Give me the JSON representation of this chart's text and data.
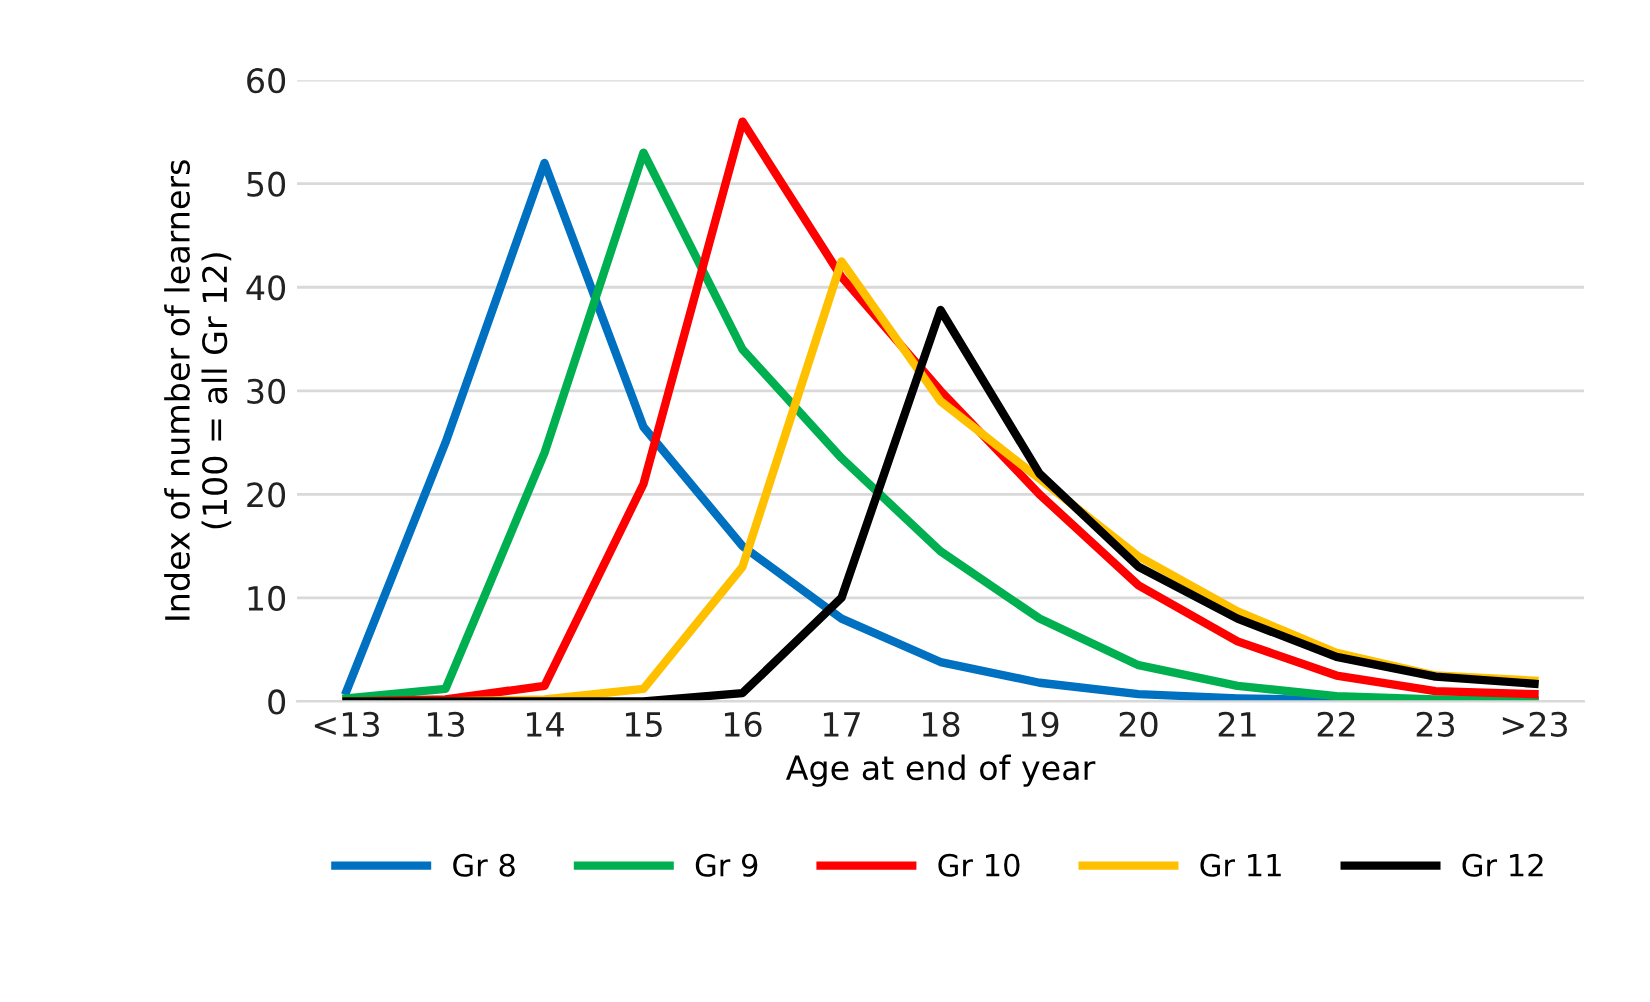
{
  "chart_data": {
    "type": "line",
    "xlabel": "Age at end of year",
    "ylabel": "Index of number of learners\n(100 = all Gr 12)",
    "categories": [
      "<13",
      "13",
      "14",
      "15",
      "16",
      "17",
      "18",
      "19",
      "20",
      "21",
      "22",
      "23",
      ">23"
    ],
    "series": [
      {
        "name": "Gr 8",
        "color": "#0070c0",
        "values": [
          1,
          25,
          52,
          26.5,
          15,
          8,
          3.8,
          1.8,
          0.7,
          0.3,
          0.1,
          0,
          0
        ]
      },
      {
        "name": "Gr 9",
        "color": "#00b050",
        "values": [
          0.3,
          1.2,
          24,
          53,
          34,
          23.5,
          14.5,
          8,
          3.5,
          1.5,
          0.5,
          0.2,
          0.1
        ]
      },
      {
        "name": "Gr 10",
        "color": "#ff0000",
        "values": [
          0,
          0.2,
          1.5,
          21,
          56,
          41,
          30,
          20,
          11.2,
          5.8,
          2.5,
          1,
          0.7
        ]
      },
      {
        "name": "Gr 11",
        "color": "#ffc000",
        "values": [
          0,
          0,
          0.2,
          1.2,
          13,
          42.5,
          29,
          21.5,
          14,
          8.7,
          4.7,
          2.5,
          2
        ]
      },
      {
        "name": "Gr 12",
        "color": "#000000",
        "values": [
          0,
          0,
          0,
          0,
          0.8,
          10,
          37.8,
          22,
          13,
          8,
          4.3,
          2.4,
          1.7
        ]
      }
    ],
    "ylim": [
      0,
      60
    ],
    "yticks": [
      0,
      10,
      20,
      30,
      40,
      50,
      60
    ],
    "grid": "y",
    "legend": "bottom",
    "marker": "none",
    "line_style": "solid"
  }
}
